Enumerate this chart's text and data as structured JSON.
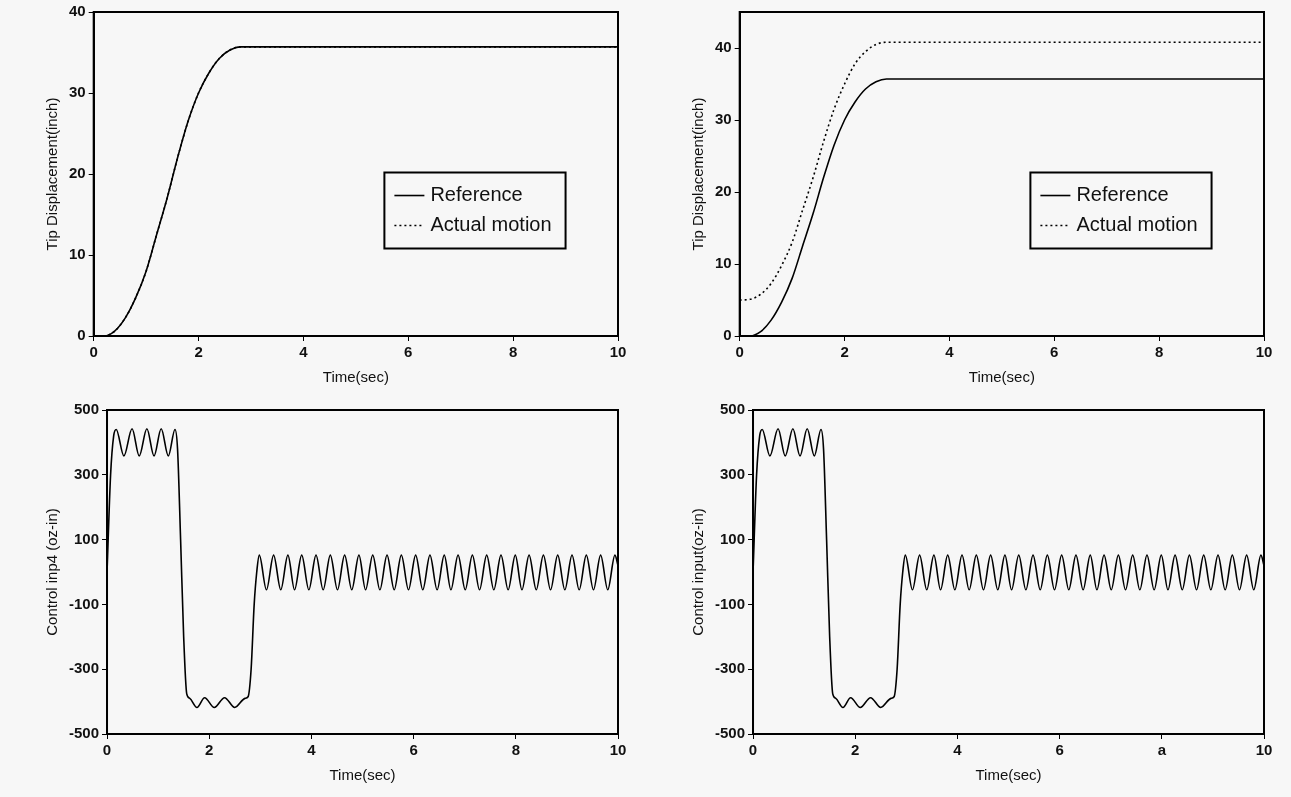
{
  "chart_data": [
    {
      "type": "line",
      "xlabel": "Time(sec)",
      "ylabel": "Tip Displacement(inch)",
      "xlim": [
        0,
        10
      ],
      "ylim": [
        0,
        40
      ],
      "xticks": [
        0,
        2,
        4,
        6,
        8,
        10
      ],
      "yticks": [
        0,
        10,
        20,
        30,
        40
      ],
      "legend": "bottom right",
      "x": [
        0,
        0.2,
        0.4,
        0.6,
        0.8,
        1.0,
        1.2,
        1.4,
        1.6,
        1.8,
        2.0,
        2.2,
        2.4,
        2.6,
        2.8,
        10
      ],
      "series": [
        {
          "name": "Reference",
          "color": "#000000",
          "line_style": "solid",
          "values": [
            0,
            0,
            0.6,
            2.2,
            4.7,
            8,
            12.5,
            17,
            22,
            26.5,
            30,
            32.5,
            34.3,
            35.3,
            35.7,
            35.7
          ]
        },
        {
          "name": "Actual motion",
          "color": "#000000",
          "line_style": "dotted",
          "values": [
            0,
            0,
            0.6,
            2.2,
            4.7,
            8,
            12.5,
            17,
            22,
            26.5,
            30,
            32.5,
            34.3,
            35.3,
            35.7,
            35.7
          ]
        }
      ]
    },
    {
      "type": "line",
      "xlabel": "Time(sec)",
      "ylabel": "Tip Displacement(inch)",
      "xlim": [
        0,
        10
      ],
      "ylim": [
        0,
        45
      ],
      "xticks": [
        0,
        2,
        4,
        6,
        8,
        10
      ],
      "yticks": [
        0,
        10,
        20,
        30,
        40
      ],
      "legend": "bottom right",
      "x": [
        0,
        0.2,
        0.4,
        0.6,
        0.8,
        1.0,
        1.2,
        1.4,
        1.6,
        1.8,
        2.0,
        2.2,
        2.4,
        2.6,
        2.8,
        10
      ],
      "series": [
        {
          "name": "Reference",
          "color": "#000000",
          "line_style": "solid",
          "values": [
            0,
            0,
            0.6,
            2.2,
            4.7,
            8,
            12.5,
            17,
            22,
            26.5,
            30,
            32.5,
            34.3,
            35.3,
            35.7,
            35.7
          ]
        },
        {
          "name": "Actual motion",
          "color": "#000000",
          "line_style": "dotted",
          "values": [
            5,
            5.1,
            5.8,
            7.3,
            9.8,
            13,
            17.5,
            22,
            27,
            31.5,
            35,
            37.8,
            39.5,
            40.5,
            40.8,
            40.8
          ]
        }
      ]
    },
    {
      "type": "line",
      "xlabel": "Time(sec)",
      "ylabel": "Control inp4 (oz-in)",
      "xlim": [
        0,
        10
      ],
      "ylim": [
        -500,
        500
      ],
      "xticks": [
        0,
        2,
        4,
        6,
        8,
        10
      ],
      "yticks": [
        -500,
        -300,
        -100,
        100,
        300,
        500
      ],
      "x": [
        0,
        0.07,
        0.13,
        0.18,
        0.33,
        0.49,
        0.63,
        0.78,
        0.92,
        1.06,
        1.2,
        1.33,
        1.38,
        1.44,
        1.5,
        1.56,
        1.62,
        1.76,
        1.91,
        2.1,
        2.3,
        2.5,
        2.7,
        2.76,
        2.82,
        2.88,
        2.93,
        2.98,
        3.12,
        3.26,
        3.4,
        3.54,
        3.67,
        3.81,
        3.95,
        4.09,
        4.23,
        4.37,
        4.51,
        4.65,
        4.79,
        4.93,
        5.06,
        5.2,
        5.34,
        5.48,
        5.62,
        5.76,
        5.9,
        6.04,
        6.18,
        6.32,
        6.46,
        6.6,
        6.73,
        6.87,
        7.01,
        7.15,
        7.29,
        7.43,
        7.57,
        7.71,
        7.85,
        7.99,
        8.12,
        8.26,
        8.4,
        8.54,
        8.68,
        8.82,
        8.96,
        9.1,
        9.24,
        9.38,
        9.52,
        9.66,
        9.8,
        9.94,
        10
      ],
      "series": [
        {
          "color": "#000000",
          "line_style": "solid",
          "values": [
            0,
            300,
            420,
            440,
            358,
            442,
            358,
            442,
            358,
            442,
            358,
            440,
            380,
            100,
            -200,
            -376,
            -390,
            -418,
            -388,
            -418,
            -388,
            -418,
            -390,
            -385,
            -300,
            -100,
            0,
            52,
            -55,
            52,
            -55,
            52,
            -55,
            52,
            -55,
            52,
            -55,
            52,
            -55,
            52,
            -55,
            52,
            -55,
            52,
            -55,
            52,
            -55,
            52,
            -55,
            52,
            -55,
            52,
            -55,
            52,
            -55,
            52,
            -55,
            52,
            -55,
            52,
            -55,
            52,
            -55,
            52,
            -55,
            52,
            -55,
            52,
            -55,
            52,
            -55,
            52,
            -55,
            52,
            -55,
            52,
            -55,
            52,
            20
          ]
        }
      ]
    },
    {
      "type": "line",
      "xlabel": "Time(sec)",
      "ylabel": "Control input(oz-in)",
      "xlim": [
        0,
        10
      ],
      "ylim": [
        -500,
        500
      ],
      "xticks": [
        0,
        2,
        4,
        6,
        {
          "value": 8,
          "label": "a"
        },
        10
      ],
      "yticks": [
        -500,
        -300,
        -100,
        100,
        300,
        500
      ],
      "x": [
        0,
        0.07,
        0.13,
        0.18,
        0.33,
        0.49,
        0.63,
        0.78,
        0.92,
        1.06,
        1.2,
        1.33,
        1.38,
        1.44,
        1.5,
        1.56,
        1.62,
        1.76,
        1.91,
        2.1,
        2.3,
        2.5,
        2.7,
        2.76,
        2.82,
        2.88,
        2.93,
        2.98,
        3.12,
        3.26,
        3.4,
        3.54,
        3.67,
        3.81,
        3.95,
        4.09,
        4.23,
        4.37,
        4.51,
        4.65,
        4.79,
        4.93,
        5.06,
        5.2,
        5.34,
        5.48,
        5.62,
        5.76,
        5.9,
        6.04,
        6.18,
        6.32,
        6.46,
        6.6,
        6.73,
        6.87,
        7.01,
        7.15,
        7.29,
        7.43,
        7.57,
        7.71,
        7.85,
        7.99,
        8.12,
        8.26,
        8.4,
        8.54,
        8.68,
        8.82,
        8.96,
        9.1,
        9.24,
        9.38,
        9.52,
        9.66,
        9.8,
        9.94,
        10
      ],
      "series": [
        {
          "color": "#000000",
          "line_style": "solid",
          "values": [
            0,
            300,
            420,
            440,
            358,
            442,
            358,
            442,
            358,
            442,
            358,
            440,
            380,
            100,
            -200,
            -376,
            -390,
            -418,
            -388,
            -418,
            -388,
            -418,
            -390,
            -385,
            -300,
            -100,
            0,
            52,
            -55,
            52,
            -55,
            52,
            -55,
            52,
            -55,
            52,
            -55,
            52,
            -55,
            52,
            -55,
            52,
            -55,
            52,
            -55,
            52,
            -55,
            52,
            -55,
            52,
            -55,
            52,
            -55,
            52,
            -55,
            52,
            -55,
            52,
            -55,
            52,
            -55,
            52,
            -55,
            52,
            -55,
            52,
            -55,
            52,
            -55,
            52,
            -55,
            52,
            -55,
            52,
            -55,
            52,
            -55,
            52,
            20
          ]
        }
      ]
    }
  ]
}
